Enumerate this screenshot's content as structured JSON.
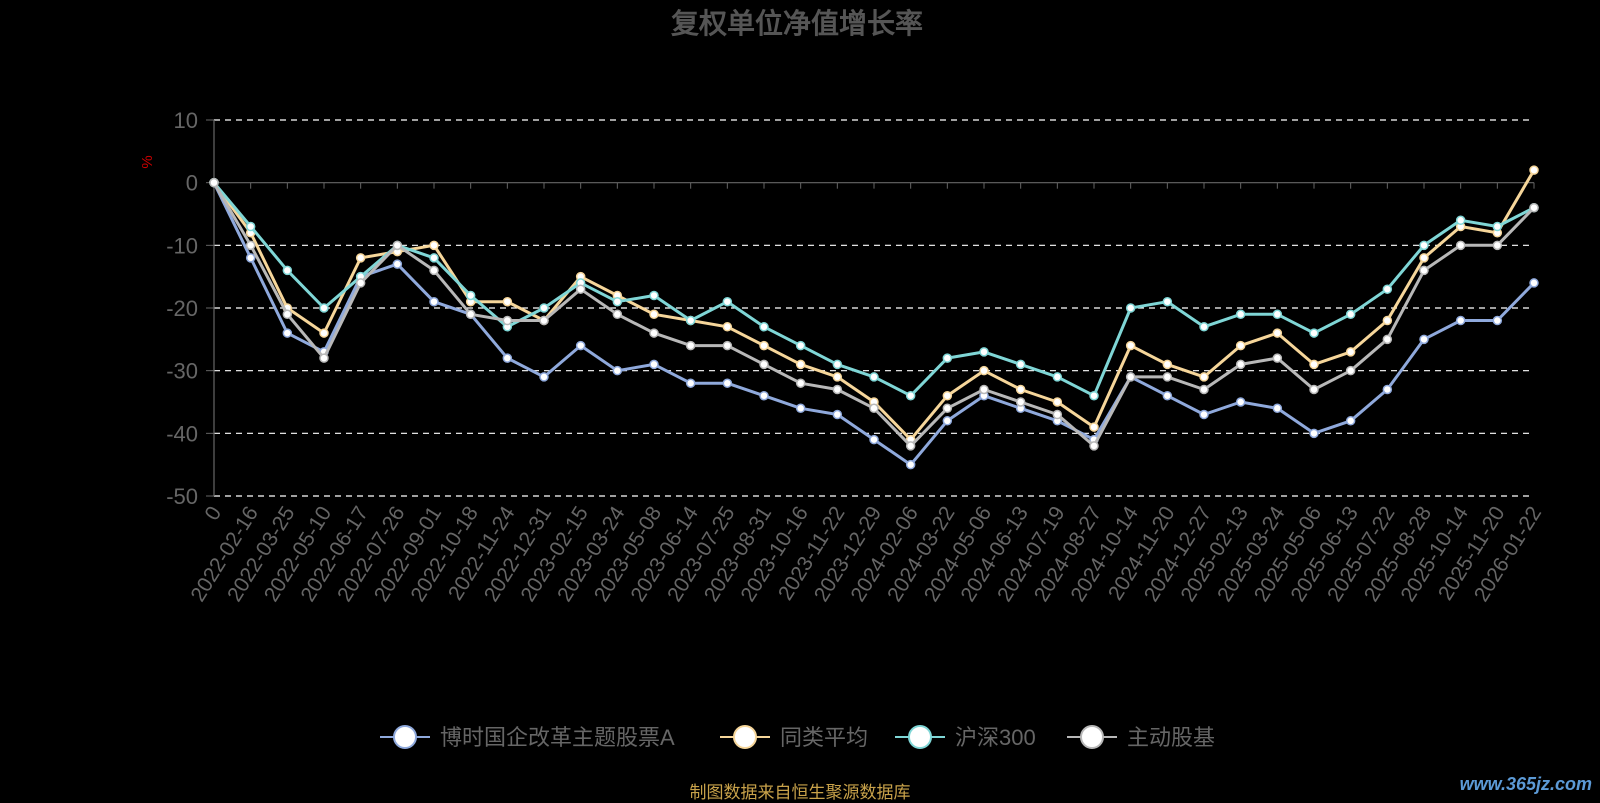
{
  "colors": {
    "background": "#000000",
    "grid": "#ffffff",
    "axis": "#666666",
    "tick_text": "#666666",
    "title_text": "#555555",
    "ylabel_text": "#cc0000",
    "legend_text": "#666666",
    "source_text": "#c8a24a",
    "watermark_text": "#5c9ad6"
  },
  "footer": {
    "source": "制图数据来自恒生聚源数据库",
    "watermark": "www.365jz.com"
  },
  "chart_data": {
    "type": "line",
    "title": "复权单位净值增长率",
    "ylabel": "%",
    "ylim": [
      -50,
      10
    ],
    "yticks": [
      10,
      0,
      -10,
      -20,
      -30,
      -40,
      -50
    ],
    "grid": true,
    "legend_position": "bottom-center",
    "x_tick_labels": [
      "0",
      "2022-02-16",
      "2022-03-25",
      "2022-05-10",
      "2022-06-17",
      "2022-07-26",
      "2022-09-01",
      "2022-10-18",
      "2022-11-24",
      "2022-12-31",
      "2023-02-15",
      "2023-03-24",
      "2023-05-08",
      "2023-06-14",
      "2023-07-25",
      "2023-08-31",
      "2023-10-16",
      "2023-11-22",
      "2023-12-29",
      "2024-02-06",
      "2024-03-22",
      "2024-05-06",
      "2024-06-13",
      "2024-07-19",
      "2024-08-27",
      "2024-10-14",
      "2024-11-20",
      "2024-12-27",
      "2025-02-13",
      "2025-03-24",
      "2025-05-06",
      "2025-06-13",
      "2025-07-22",
      "2025-08-28",
      "2025-10-14",
      "2025-11-20",
      "2026-01-22"
    ],
    "series": [
      {
        "name": "博时国企改革主题股票A",
        "color": "#8fa9dc",
        "values": [
          0,
          -12,
          -24,
          -27,
          -15,
          -13,
          -19,
          -21,
          -28,
          -31,
          -26,
          -30,
          -29,
          -32,
          -32,
          -34,
          -36,
          -37,
          -41,
          -45,
          -38,
          -34,
          -36,
          -38,
          -41,
          -31,
          -34,
          -37,
          -35,
          -36,
          -40,
          -38,
          -33,
          -25,
          -22,
          -22,
          -16
        ]
      },
      {
        "name": "同类平均",
        "color": "#f6d69a",
        "values": [
          0,
          -8,
          -20,
          -24,
          -12,
          -11,
          -10,
          -19,
          -19,
          -22,
          -15,
          -18,
          -21,
          -22,
          -23,
          -26,
          -29,
          -31,
          -35,
          -41,
          -34,
          -30,
          -33,
          -35,
          -39,
          -26,
          -29,
          -31,
          -26,
          -24,
          -29,
          -27,
          -22,
          -12,
          -7,
          -8,
          2
        ]
      },
      {
        "name": "沪深300",
        "color": "#7fd6d6",
        "values": [
          0,
          -7,
          -14,
          -20,
          -15,
          -10,
          -12,
          -18,
          -23,
          -20,
          -16,
          -19,
          -18,
          -22,
          -19,
          -23,
          -26,
          -29,
          -31,
          -34,
          -28,
          -27,
          -29,
          -31,
          -34,
          -20,
          -19,
          -23,
          -21,
          -21,
          -24,
          -21,
          -17,
          -10,
          -6,
          -7,
          -4
        ]
      },
      {
        "name": "主动股基",
        "color": "#b8b8b8",
        "values": [
          0,
          -10,
          -21,
          -28,
          -16,
          -10,
          -14,
          -21,
          -22,
          -22,
          -17,
          -21,
          -24,
          -26,
          -26,
          -29,
          -32,
          -33,
          -36,
          -42,
          -36,
          -33,
          -35,
          -37,
          -42,
          -31,
          -31,
          -33,
          -29,
          -28,
          -33,
          -30,
          -25,
          -14,
          -10,
          -10,
          -4
        ]
      }
    ]
  }
}
